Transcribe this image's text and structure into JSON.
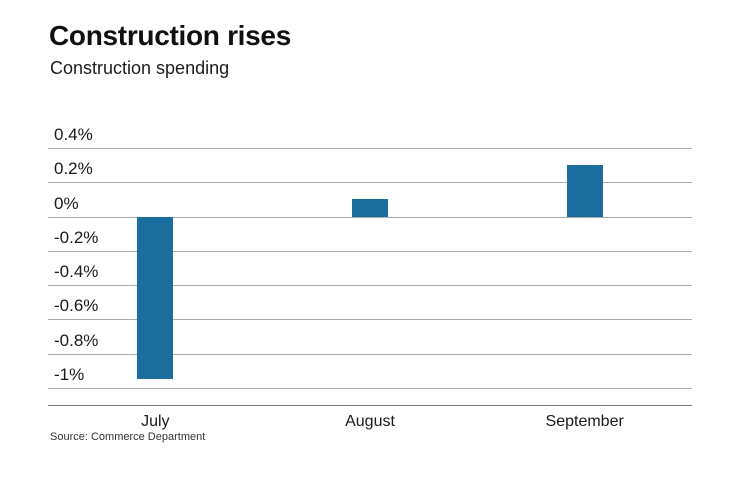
{
  "header": {
    "title": "Construction rises",
    "subtitle": "Construction spending"
  },
  "source_note": "Source: Commerce Department",
  "colors": {
    "bar": "#1a6d9d",
    "grid": "#ababab",
    "axis": "#7f7f7f"
  },
  "chart_data": {
    "type": "bar",
    "title": "Construction rises",
    "subtitle": "Construction spending",
    "categories": [
      "July",
      "August",
      "September"
    ],
    "values": [
      -0.95,
      0.1,
      0.3
    ],
    "value_unit": "%",
    "xlabel": "",
    "ylabel": "",
    "ylim": [
      -1.1,
      0.4
    ],
    "yticks": [
      0.4,
      0.2,
      0,
      -0.2,
      -0.4,
      -0.6,
      -0.8,
      -1
    ],
    "ytick_labels": [
      "0.4%",
      "0.2%",
      "0%",
      "-0.2%",
      "-0.4%",
      "-0.6%",
      "-0.8%",
      "-1%"
    ],
    "grid": true,
    "legend": false,
    "source": "Source: Commerce Department"
  }
}
